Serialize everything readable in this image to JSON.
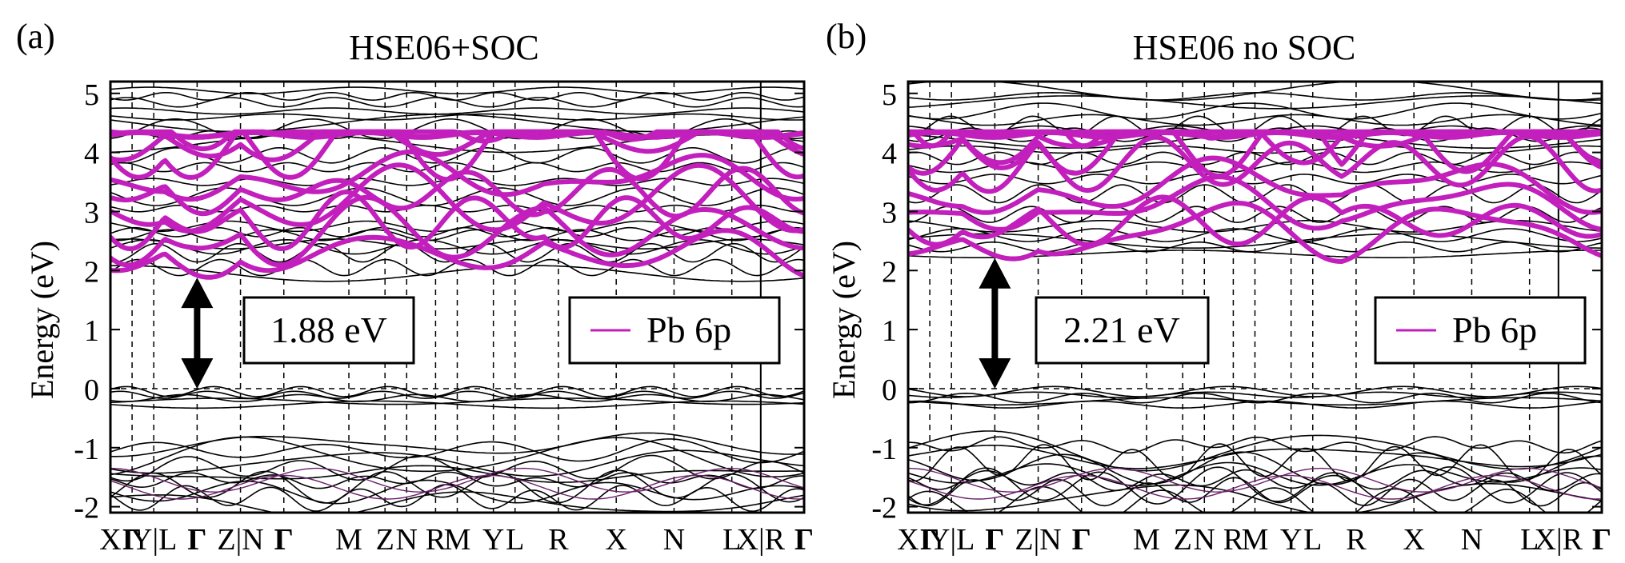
{
  "chart_data": [
    {
      "type": "line",
      "subtype": "band-structure",
      "panel_label": "(a)",
      "title": "HSE06+SOC",
      "xlabel": "",
      "ylabel": "Energy (eV)",
      "ylim": [
        -2.1,
        5.2
      ],
      "yticks": [
        5,
        4,
        3,
        2,
        1,
        0,
        -1,
        -2
      ],
      "ytick_labels": [
        "5",
        "4",
        "3",
        "2",
        "1",
        "0",
        "-1",
        "-2"
      ],
      "kpoints": [
        {
          "label": "X",
          "pos": 0.0,
          "bold": false
        },
        {
          "label": "Γ",
          "pos": 0.3,
          "bold": true
        },
        {
          "label": "Y|L",
          "pos": 0.6,
          "bold": false
        },
        {
          "label": "Γ",
          "pos": 1.2,
          "bold": true
        },
        {
          "label": "Z|N",
          "pos": 1.8,
          "bold": false
        },
        {
          "label": "Γ",
          "pos": 2.4,
          "bold": true
        },
        {
          "label": "M",
          "pos": 3.3,
          "bold": false
        },
        {
          "label": "Z",
          "pos": 3.8,
          "bold": false
        },
        {
          "label": "N",
          "pos": 4.1,
          "bold": false
        },
        {
          "label": "R",
          "pos": 4.5,
          "bold": false
        },
        {
          "label": "M",
          "pos": 4.8,
          "bold": false
        },
        {
          "label": "Y",
          "pos": 5.3,
          "bold": false
        },
        {
          "label": "L",
          "pos": 5.6,
          "bold": false
        },
        {
          "label": "R",
          "pos": 6.2,
          "bold": false
        },
        {
          "label": "X",
          "pos": 7.0,
          "bold": false
        },
        {
          "label": "N",
          "pos": 7.8,
          "bold": false
        },
        {
          "label": "L",
          "pos": 8.6,
          "bold": false
        },
        {
          "label": "X|R",
          "pos": 9.0,
          "bold": false
        },
        {
          "label": "Γ",
          "pos": 9.6,
          "bold": true
        }
      ],
      "band_gap_label": "1.88 eV",
      "gap_arrow": {
        "k": 1.2,
        "from": 0.0,
        "to": 1.88
      },
      "legend": [
        {
          "name": "Pb 6p",
          "color": "#c21fbd"
        }
      ],
      "cb_min": 1.95,
      "cb_base": [
        1.95,
        2.05,
        2.3,
        2.4,
        2.45,
        2.6,
        2.65,
        2.75,
        3.05,
        3.25,
        3.5,
        3.75,
        3.95,
        4.15,
        4.3,
        4.4,
        4.5,
        4.6,
        4.7,
        4.85,
        4.95,
        5.05
      ]
    },
    {
      "type": "line",
      "subtype": "band-structure",
      "panel_label": "(b)",
      "title": "HSE06 no SOC",
      "xlabel": "",
      "ylabel": "Energy (eV)",
      "ylim": [
        -2.1,
        5.2
      ],
      "yticks": [
        5,
        4,
        3,
        2,
        1,
        0,
        -1,
        -2
      ],
      "ytick_labels": [
        "5",
        "4",
        "3",
        "2",
        "1",
        "0",
        "-1",
        "-2"
      ],
      "kpoints": [
        {
          "label": "X",
          "pos": 0.0,
          "bold": false
        },
        {
          "label": "Γ",
          "pos": 0.3,
          "bold": true
        },
        {
          "label": "Y|L",
          "pos": 0.6,
          "bold": false
        },
        {
          "label": "Γ",
          "pos": 1.2,
          "bold": true
        },
        {
          "label": "Z|N",
          "pos": 1.8,
          "bold": false
        },
        {
          "label": "Γ",
          "pos": 2.4,
          "bold": true
        },
        {
          "label": "M",
          "pos": 3.3,
          "bold": false
        },
        {
          "label": "Z",
          "pos": 3.8,
          "bold": false
        },
        {
          "label": "N",
          "pos": 4.1,
          "bold": false
        },
        {
          "label": "R",
          "pos": 4.5,
          "bold": false
        },
        {
          "label": "M",
          "pos": 4.8,
          "bold": false
        },
        {
          "label": "Y",
          "pos": 5.3,
          "bold": false
        },
        {
          "label": "L",
          "pos": 5.6,
          "bold": false
        },
        {
          "label": "R",
          "pos": 6.2,
          "bold": false
        },
        {
          "label": "X",
          "pos": 7.0,
          "bold": false
        },
        {
          "label": "N",
          "pos": 7.8,
          "bold": false
        },
        {
          "label": "L",
          "pos": 8.6,
          "bold": false
        },
        {
          "label": "X|R",
          "pos": 9.0,
          "bold": false
        },
        {
          "label": "Γ",
          "pos": 9.6,
          "bold": true
        }
      ],
      "band_gap_label": "2.21 eV",
      "gap_arrow": {
        "k": 1.2,
        "from": 0.0,
        "to": 2.21
      },
      "legend": [
        {
          "name": "Pb 6p",
          "color": "#c21fbd"
        }
      ],
      "cb_min": 2.28,
      "cb_base": [
        2.28,
        2.4,
        2.5,
        2.6,
        2.75,
        2.95,
        3.3,
        3.55,
        3.75,
        3.9,
        4.05,
        4.2,
        4.3,
        4.38,
        4.45,
        4.55,
        4.7,
        4.85,
        4.95,
        5.05
      ]
    }
  ]
}
